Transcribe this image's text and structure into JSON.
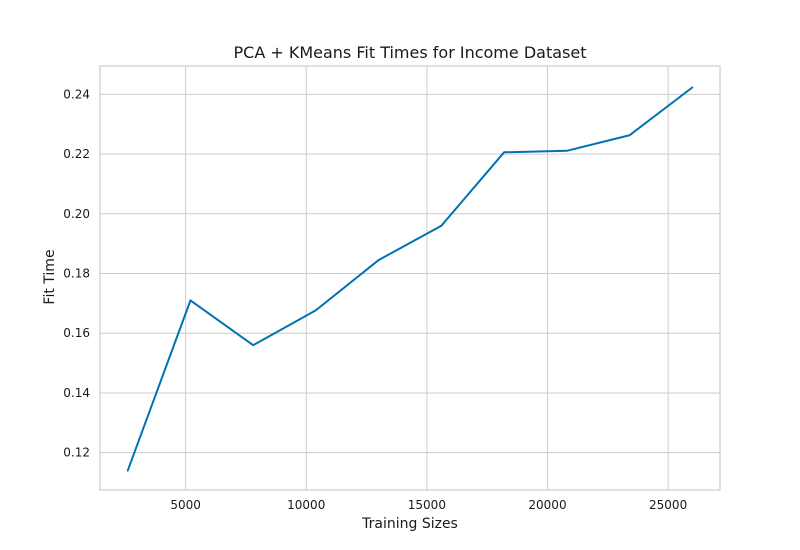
{
  "chart_data": {
    "type": "line",
    "title": "PCA + KMeans Fit Times for Income Dataset",
    "xlabel": "Training Sizes",
    "ylabel": "Fit Time",
    "xlim": [
      1450,
      27150
    ],
    "ylim": [
      0.1075,
      0.2495
    ],
    "xticks": [
      5000,
      10000,
      15000,
      20000,
      25000
    ],
    "xtick_labels": [
      "5000",
      "10000",
      "15000",
      "20000",
      "25000"
    ],
    "yticks": [
      0.12,
      0.14,
      0.16,
      0.18,
      0.2,
      0.22,
      0.24
    ],
    "ytick_labels": [
      "0.12",
      "0.14",
      "0.16",
      "0.18",
      "0.20",
      "0.22",
      "0.24"
    ],
    "grid": true,
    "series": [
      {
        "color": "#0072b2",
        "x": [
          2600,
          5200,
          7800,
          10400,
          13000,
          15600,
          18200,
          20800,
          23400,
          26000
        ],
        "y": [
          0.114,
          0.171,
          0.156,
          0.1677,
          0.1845,
          0.196,
          0.2206,
          0.2211,
          0.2263,
          0.2423
        ]
      }
    ]
  }
}
